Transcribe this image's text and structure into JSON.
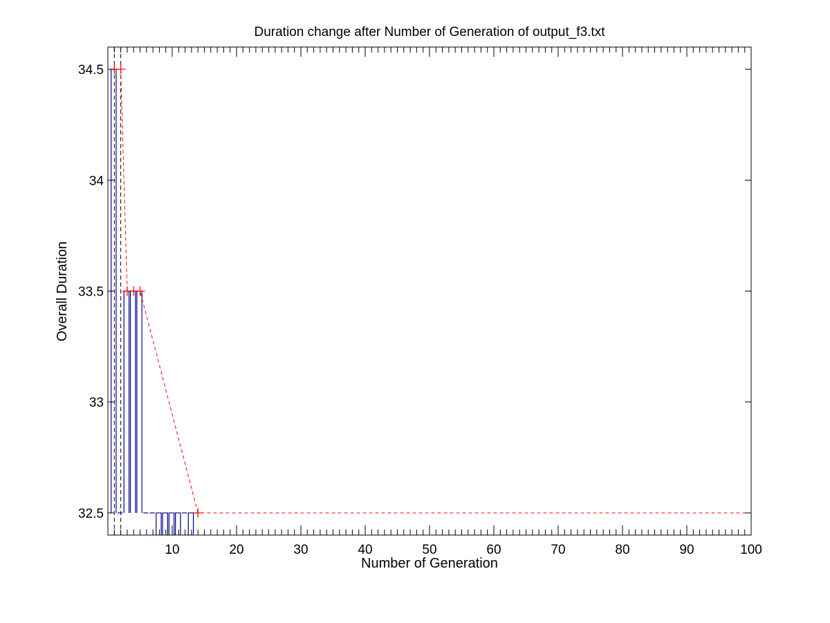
{
  "chart_data": {
    "type": "line",
    "title": "Duration change after Number of Generation of output_f3.txt",
    "xlabel": "Number of Generation",
    "ylabel": "Overall Duration",
    "xlim": [
      0,
      100
    ],
    "ylim": [
      32.4,
      34.6
    ],
    "xticks": [
      10,
      20,
      30,
      40,
      50,
      60,
      70,
      80,
      90,
      100
    ],
    "yticks": [
      32.5,
      33,
      33.5,
      34,
      34.5
    ],
    "grid": false,
    "legend": "none",
    "series": [
      {
        "style": "step",
        "color": "#00008b",
        "x": [
          1,
          2,
          3,
          4,
          5,
          6,
          7,
          8,
          9,
          10,
          11,
          12,
          13,
          14
        ],
        "y": [
          34.5,
          32.5,
          33.5,
          33.5,
          33.5,
          32.5,
          32.5,
          32.3,
          32.3,
          32.3,
          32.3,
          32.5,
          32.3,
          32.5
        ]
      },
      {
        "style": "dashed-best",
        "color": "#ff0000",
        "marker": "+",
        "x": [
          1,
          2,
          3,
          4,
          5,
          14
        ],
        "y": [
          34.5,
          34.5,
          33.5,
          33.5,
          33.5,
          32.5
        ],
        "extends_to_x": 100
      }
    ],
    "vlines": [
      {
        "x": 1,
        "style": "dashed",
        "color": "#000000"
      },
      {
        "x": 2,
        "style": "dashed",
        "color": "#000000"
      }
    ]
  }
}
